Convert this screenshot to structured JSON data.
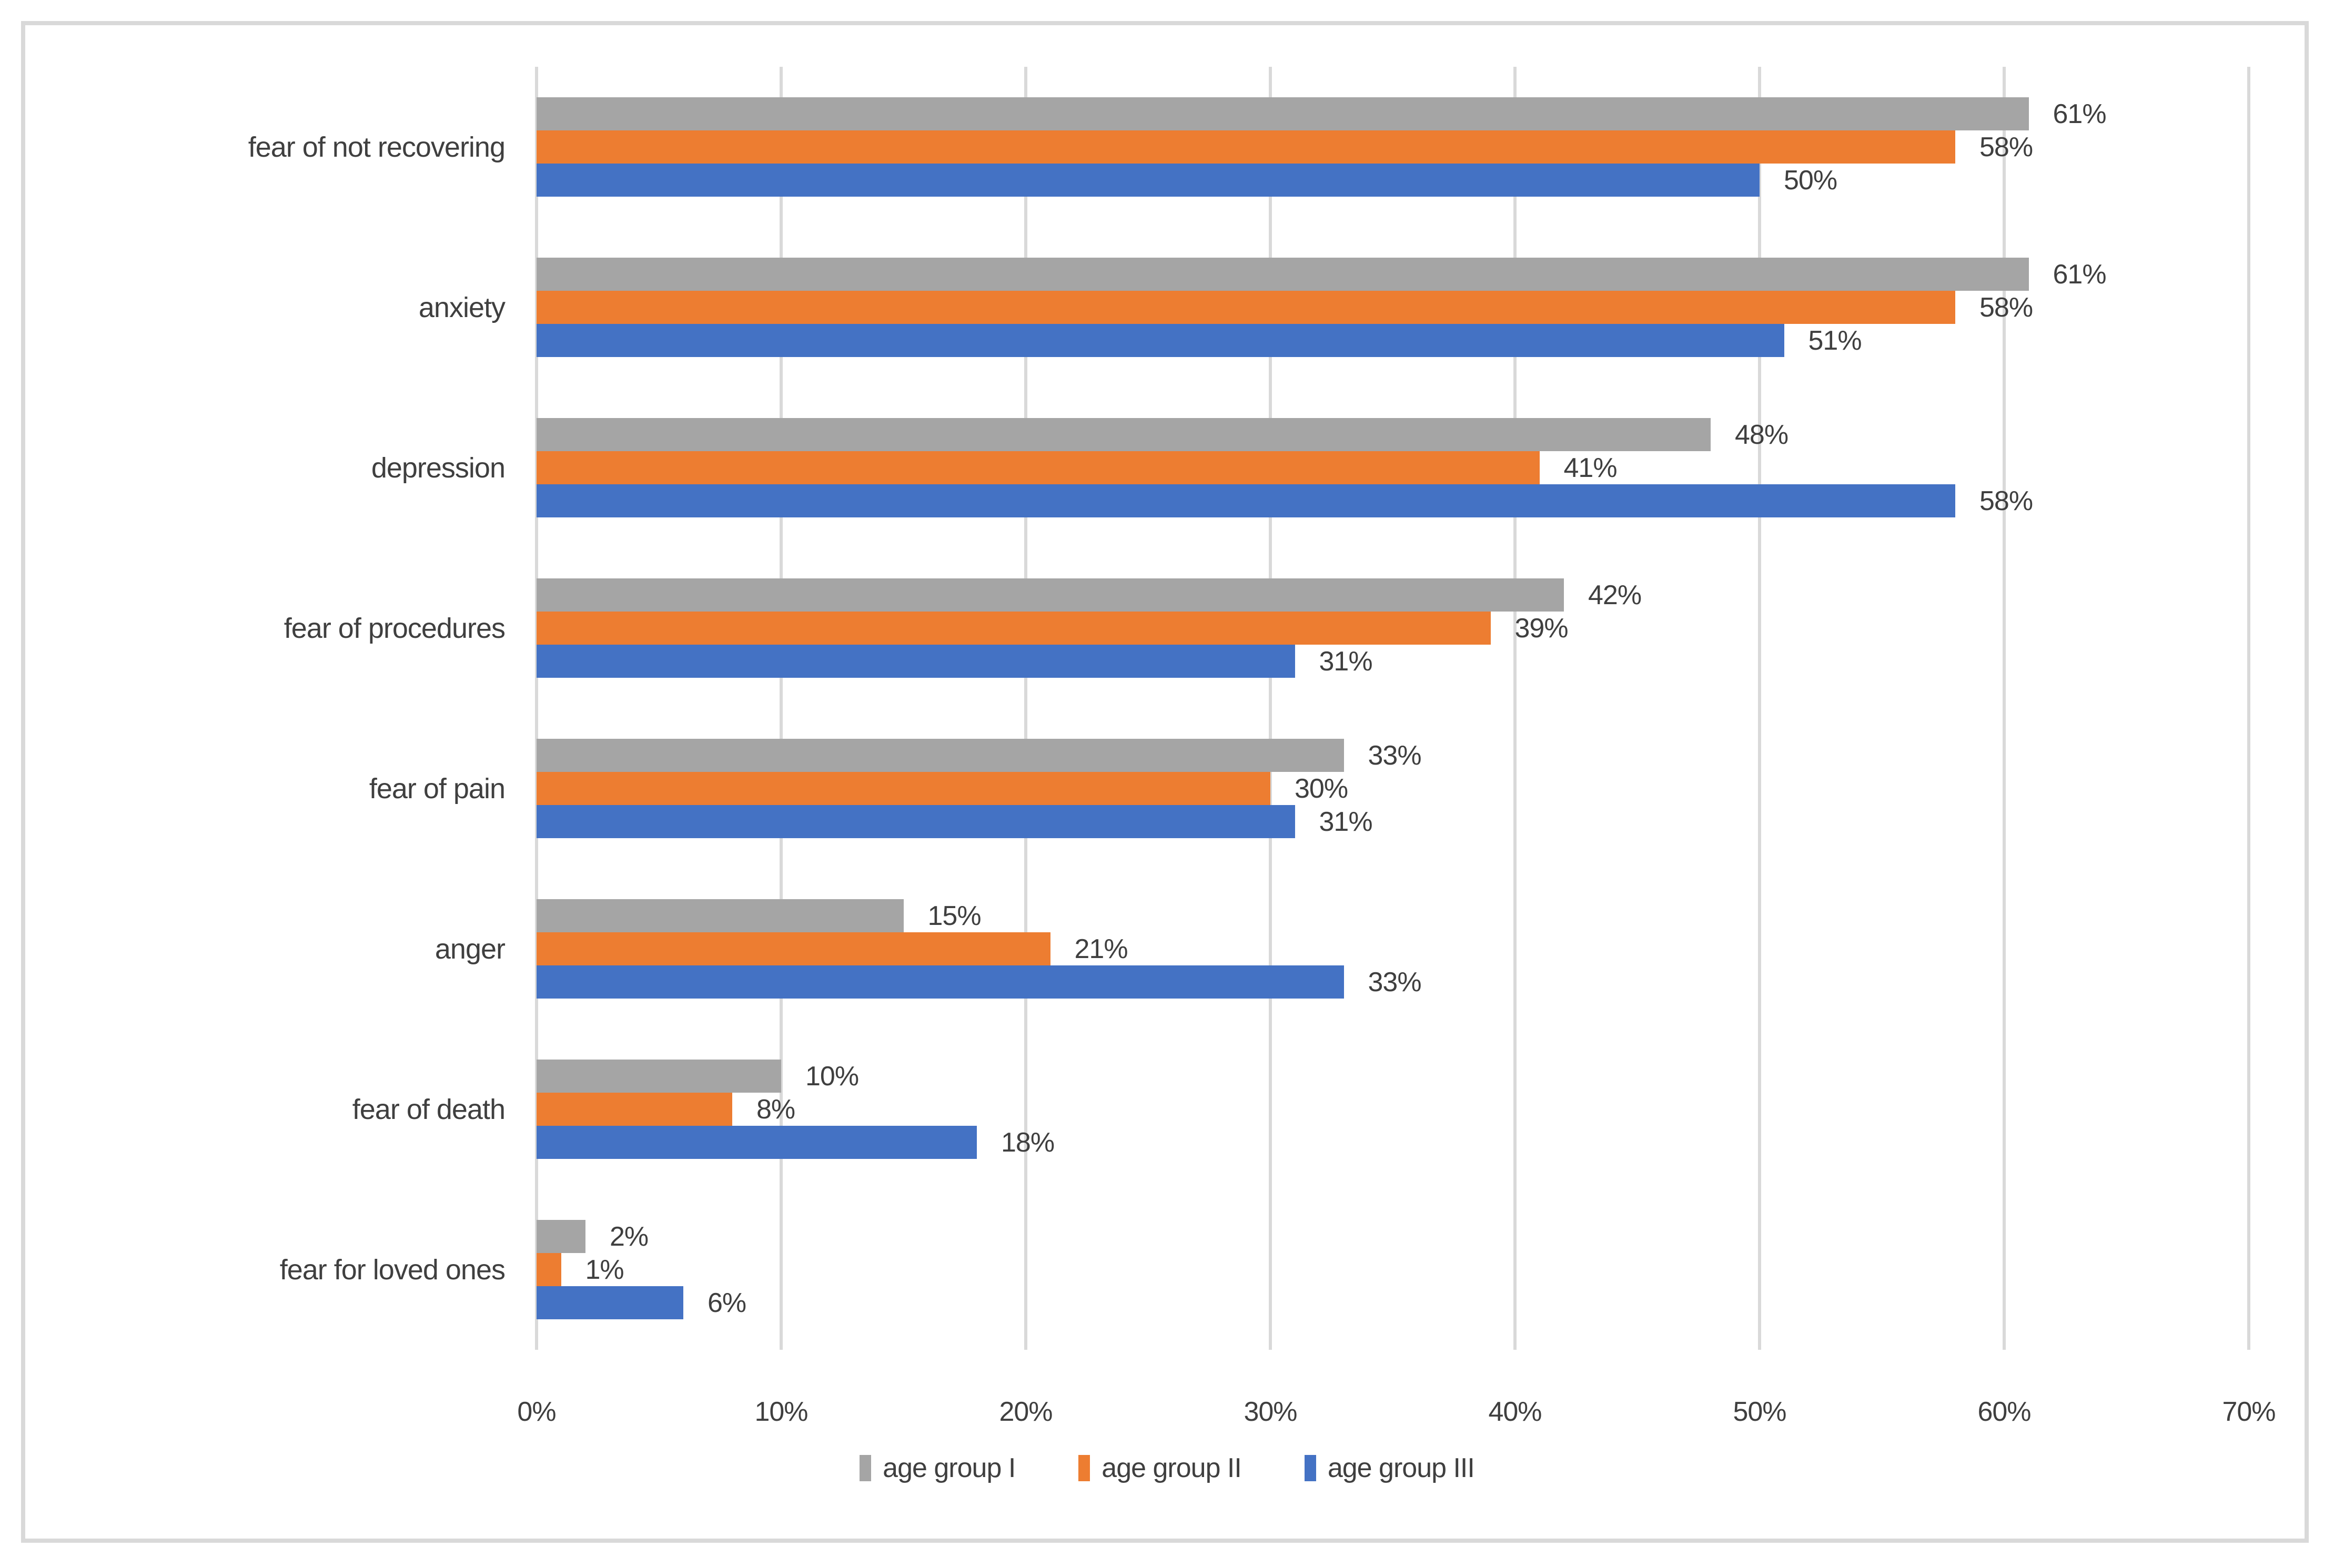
{
  "chart_data": {
    "type": "bar",
    "orientation": "horizontal",
    "title": "",
    "categories": [
      "fear of not recovering",
      "anxiety",
      "depression",
      "fear of procedures",
      "fear of pain",
      "anger",
      "fear of death",
      "fear for loved ones"
    ],
    "series": [
      {
        "name": "age group I",
        "color": "#A5A5A5",
        "values": [
          61,
          61,
          48,
          42,
          33,
          15,
          10,
          2
        ]
      },
      {
        "name": "age group II",
        "color": "#ED7D31",
        "values": [
          58,
          58,
          41,
          39,
          30,
          21,
          8,
          1
        ]
      },
      {
        "name": "age group III",
        "color": "#4472C4",
        "values": [
          50,
          51,
          58,
          31,
          31,
          33,
          18,
          6
        ]
      }
    ],
    "value_label_suffix": "%",
    "x_axis": {
      "ticks": [
        "0%",
        "10%",
        "20%",
        "30%",
        "40%",
        "50%",
        "60%",
        "70%"
      ],
      "tick_values": [
        0,
        10,
        20,
        30,
        40,
        50,
        60,
        70
      ],
      "min": 0,
      "max": 70
    },
    "grid": true,
    "grid_color": "#D9D9D9",
    "legend_position": "bottom",
    "text_color": "#3F3F3F",
    "frame_border_color": "#D9D9D9"
  }
}
